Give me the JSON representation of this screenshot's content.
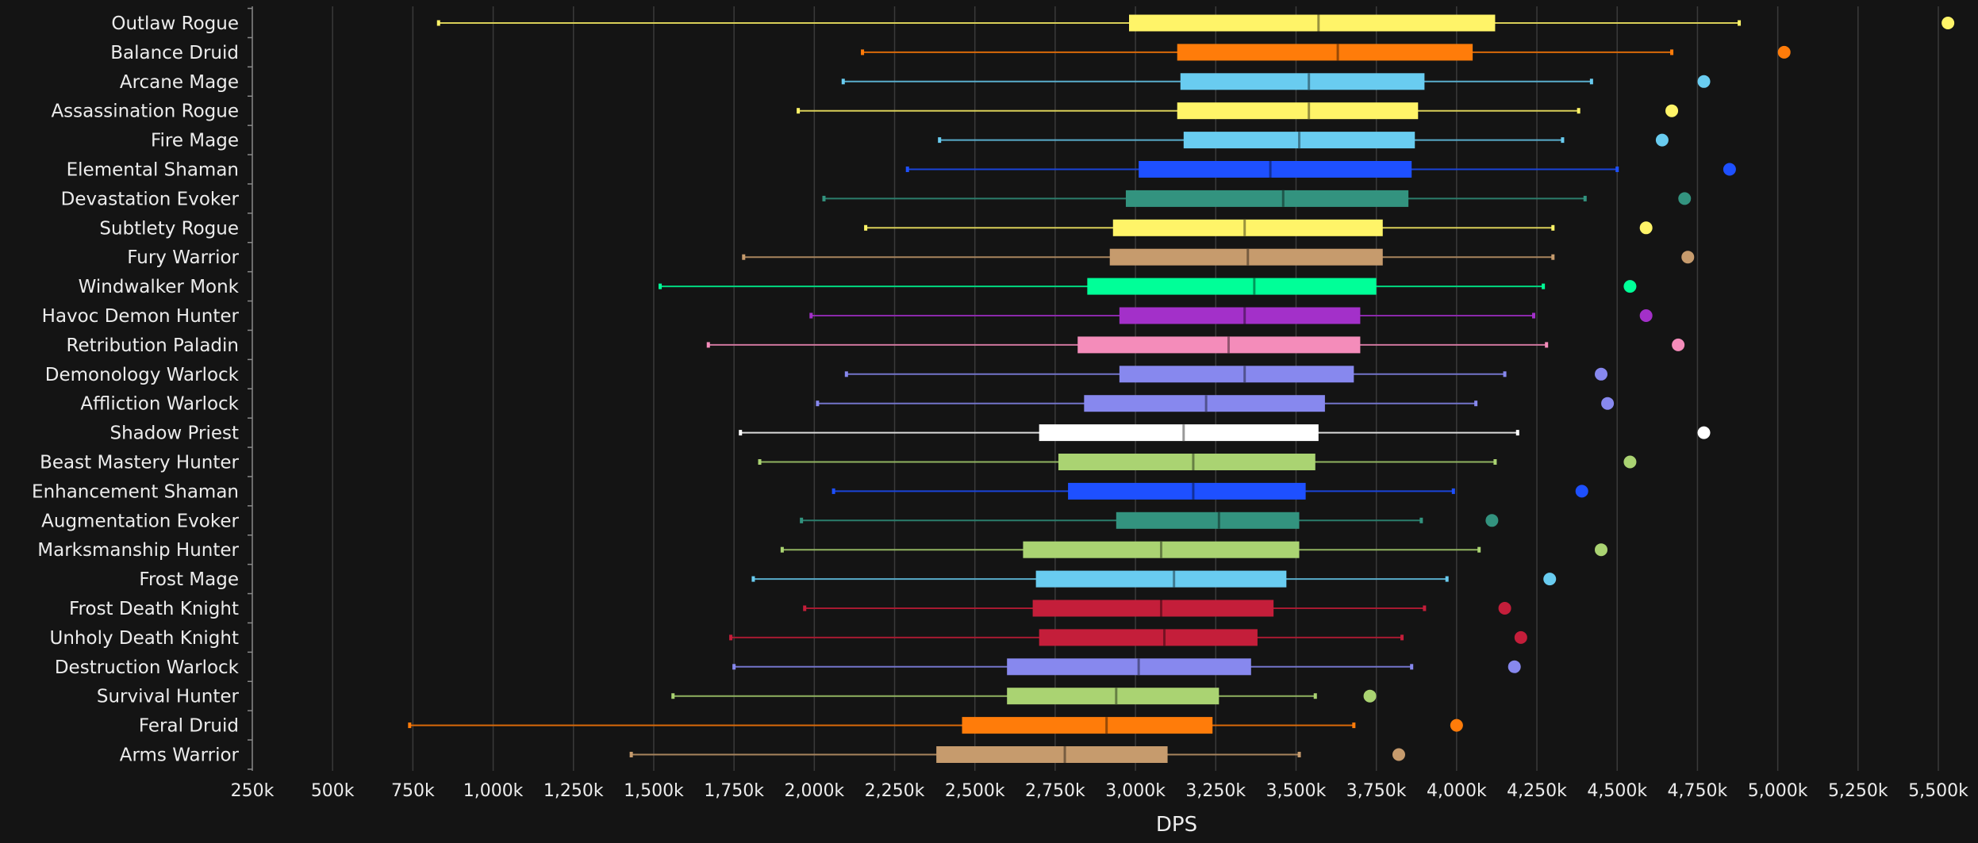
{
  "chart_data": {
    "type": "box",
    "xlabel": "DPS",
    "ylabel": "",
    "xlim": [
      250000,
      5500000
    ],
    "grid": true,
    "legend": "none",
    "ticks": [
      {
        "value": 250000,
        "label": "250k"
      },
      {
        "value": 500000,
        "label": "500k"
      },
      {
        "value": 750000,
        "label": "750k"
      },
      {
        "value": 1000000,
        "label": "1,000k"
      },
      {
        "value": 1250000,
        "label": "1,250k"
      },
      {
        "value": 1500000,
        "label": "1,500k"
      },
      {
        "value": 1750000,
        "label": "1,750k"
      },
      {
        "value": 2000000,
        "label": "2,000k"
      },
      {
        "value": 2250000,
        "label": "2,250k"
      },
      {
        "value": 2500000,
        "label": "2,500k"
      },
      {
        "value": 2750000,
        "label": "2,750k"
      },
      {
        "value": 3000000,
        "label": "3,000k"
      },
      {
        "value": 3250000,
        "label": "3,250k"
      },
      {
        "value": 3500000,
        "label": "3,500k"
      },
      {
        "value": 3750000,
        "label": "3,750k"
      },
      {
        "value": 4000000,
        "label": "4,000k"
      },
      {
        "value": 4250000,
        "label": "4,250k"
      },
      {
        "value": 4500000,
        "label": "4,500k"
      },
      {
        "value": 4750000,
        "label": "4,750k"
      },
      {
        "value": 5000000,
        "label": "5,000k"
      },
      {
        "value": 5250000,
        "label": "5,250k"
      },
      {
        "value": 5500000,
        "label": "5,500k"
      }
    ],
    "series": [
      {
        "name": "Outlaw Rogue",
        "color": "#fff468",
        "min": 830000,
        "q1": 2980000,
        "median": 3570000,
        "q3": 4120000,
        "max": 4880000,
        "outlier": 5530000
      },
      {
        "name": "Balance Druid",
        "color": "#ff7c0a",
        "min": 2150000,
        "q1": 3130000,
        "median": 3630000,
        "q3": 4050000,
        "max": 4670000,
        "outlier": 5020000
      },
      {
        "name": "Arcane Mage",
        "color": "#69ccf0",
        "min": 2090000,
        "q1": 3140000,
        "median": 3540000,
        "q3": 3900000,
        "max": 4420000,
        "outlier": 4770000
      },
      {
        "name": "Assassination Rogue",
        "color": "#fff468",
        "min": 1950000,
        "q1": 3130000,
        "median": 3540000,
        "q3": 3880000,
        "max": 4380000,
        "outlier": 4670000
      },
      {
        "name": "Fire Mage",
        "color": "#69ccf0",
        "min": 2390000,
        "q1": 3150000,
        "median": 3510000,
        "q3": 3870000,
        "max": 4330000,
        "outlier": 4640000
      },
      {
        "name": "Elemental Shaman",
        "color": "#1e50ff",
        "min": 2290000,
        "q1": 3010000,
        "median": 3420000,
        "q3": 3860000,
        "max": 4500000,
        "outlier": 4850000
      },
      {
        "name": "Devastation Evoker",
        "color": "#33937f",
        "min": 2030000,
        "q1": 2970000,
        "median": 3460000,
        "q3": 3850000,
        "max": 4400000,
        "outlier": 4710000
      },
      {
        "name": "Subtlety Rogue",
        "color": "#fff468",
        "min": 2160000,
        "q1": 2930000,
        "median": 3340000,
        "q3": 3770000,
        "max": 4300000,
        "outlier": 4590000
      },
      {
        "name": "Fury Warrior",
        "color": "#c69b6d",
        "min": 1780000,
        "q1": 2920000,
        "median": 3350000,
        "q3": 3770000,
        "max": 4300000,
        "outlier": 4720000
      },
      {
        "name": "Windwalker Monk",
        "color": "#00ff98",
        "min": 1520000,
        "q1": 2850000,
        "median": 3370000,
        "q3": 3750000,
        "max": 4270000,
        "outlier": 4540000
      },
      {
        "name": "Havoc Demon Hunter",
        "color": "#a330c9",
        "min": 1990000,
        "q1": 2950000,
        "median": 3340000,
        "q3": 3700000,
        "max": 4240000,
        "outlier": 4590000
      },
      {
        "name": "Retribution Paladin",
        "color": "#f48cba",
        "min": 1670000,
        "q1": 2820000,
        "median": 3290000,
        "q3": 3700000,
        "max": 4280000,
        "outlier": 4690000
      },
      {
        "name": "Demonology Warlock",
        "color": "#8788ee",
        "min": 2100000,
        "q1": 2950000,
        "median": 3340000,
        "q3": 3680000,
        "max": 4150000,
        "outlier": 4450000
      },
      {
        "name": "Affliction Warlock",
        "color": "#8788ee",
        "min": 2010000,
        "q1": 2840000,
        "median": 3220000,
        "q3": 3590000,
        "max": 4060000,
        "outlier": 4470000
      },
      {
        "name": "Shadow Priest",
        "color": "#ffffff",
        "min": 1770000,
        "q1": 2700000,
        "median": 3150000,
        "q3": 3570000,
        "max": 4190000,
        "outlier": 4770000
      },
      {
        "name": "Beast Mastery Hunter",
        "color": "#aad372",
        "min": 1830000,
        "q1": 2760000,
        "median": 3180000,
        "q3": 3560000,
        "max": 4120000,
        "outlier": 4540000
      },
      {
        "name": "Enhancement Shaman",
        "color": "#1e50ff",
        "min": 2060000,
        "q1": 2790000,
        "median": 3180000,
        "q3": 3530000,
        "max": 3990000,
        "outlier": 4390000
      },
      {
        "name": "Augmentation Evoker",
        "color": "#33937f",
        "min": 1960000,
        "q1": 2940000,
        "median": 3260000,
        "q3": 3510000,
        "max": 3890000,
        "outlier": 4110000
      },
      {
        "name": "Marksmanship Hunter",
        "color": "#aad372",
        "min": 1900000,
        "q1": 2650000,
        "median": 3080000,
        "q3": 3510000,
        "max": 4070000,
        "outlier": 4450000
      },
      {
        "name": "Frost Mage",
        "color": "#69ccf0",
        "min": 1810000,
        "q1": 2690000,
        "median": 3120000,
        "q3": 3470000,
        "max": 3970000,
        "outlier": 4290000
      },
      {
        "name": "Frost Death Knight",
        "color": "#c41e3a",
        "min": 1970000,
        "q1": 2680000,
        "median": 3080000,
        "q3": 3430000,
        "max": 3900000,
        "outlier": 4150000
      },
      {
        "name": "Unholy Death Knight",
        "color": "#c41e3a",
        "min": 1740000,
        "q1": 2700000,
        "median": 3090000,
        "q3": 3380000,
        "max": 3830000,
        "outlier": 4200000
      },
      {
        "name": "Destruction Warlock",
        "color": "#8788ee",
        "min": 1750000,
        "q1": 2600000,
        "median": 3010000,
        "q3": 3360000,
        "max": 3860000,
        "outlier": 4180000
      },
      {
        "name": "Survival Hunter",
        "color": "#aad372",
        "min": 1560000,
        "q1": 2600000,
        "median": 2940000,
        "q3": 3260000,
        "max": 3560000,
        "outlier": 3730000
      },
      {
        "name": "Feral Druid",
        "color": "#ff7c0a",
        "min": 740000,
        "q1": 2460000,
        "median": 2910000,
        "q3": 3240000,
        "max": 3680000,
        "outlier": 4000000
      },
      {
        "name": "Arms Warrior",
        "color": "#c69b6d",
        "min": 1430000,
        "q1": 2380000,
        "median": 2780000,
        "q3": 3100000,
        "max": 3510000,
        "outlier": 3820000
      }
    ]
  }
}
